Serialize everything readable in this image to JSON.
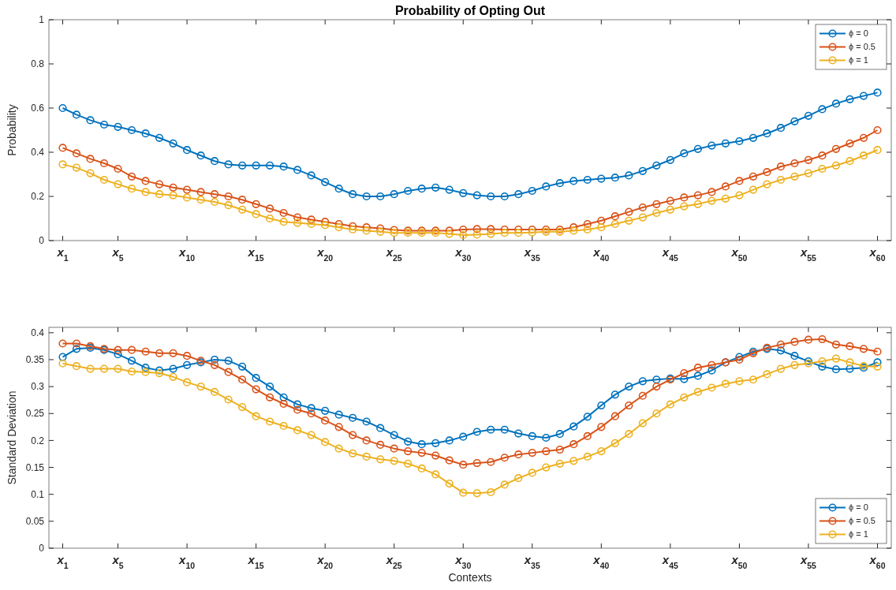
{
  "chart_data": [
    {
      "type": "line",
      "title": "Probability of Opting Out",
      "ylabel": "Probability",
      "x": [
        1,
        2,
        3,
        4,
        5,
        6,
        7,
        8,
        9,
        10,
        11,
        12,
        13,
        14,
        15,
        16,
        17,
        18,
        19,
        20,
        21,
        22,
        23,
        24,
        25,
        26,
        27,
        28,
        29,
        30,
        31,
        32,
        33,
        34,
        35,
        36,
        37,
        38,
        39,
        40,
        41,
        42,
        43,
        44,
        45,
        46,
        47,
        48,
        49,
        50,
        51,
        52,
        53,
        54,
        55,
        56,
        57,
        58,
        59,
        60
      ],
      "xlim": [
        0,
        61
      ],
      "ylim": [
        0,
        1
      ],
      "yticks": [
        0,
        0.2,
        0.4,
        0.6,
        0.8,
        1
      ],
      "xticks": [
        {
          "value": 1,
          "label": "x$_{1}$"
        },
        {
          "value": 5,
          "label": "x$_{5}$"
        },
        {
          "value": 10,
          "label": "x$_{10}$"
        },
        {
          "value": 15,
          "label": "x$_{15}$"
        },
        {
          "value": 20,
          "label": "x$_{20}$"
        },
        {
          "value": 25,
          "label": "x$_{25}$"
        },
        {
          "value": 30,
          "label": "x$_{30}$"
        },
        {
          "value": 35,
          "label": "x$_{35}$"
        },
        {
          "value": 40,
          "label": "x$_{40}$"
        },
        {
          "value": 45,
          "label": "x$_{45}$"
        },
        {
          "value": 50,
          "label": "x$_{50}$"
        },
        {
          "value": 55,
          "label": "x$_{55}$"
        },
        {
          "value": 60,
          "label": "x$_{60}$"
        }
      ],
      "grid": false,
      "legend": "top right",
      "marker": "circle",
      "line_style": "solid",
      "series": [
        {
          "name": "ϕ = 0",
          "color": "#0072bd",
          "values": [
            0.6,
            0.57,
            0.545,
            0.525,
            0.515,
            0.5,
            0.485,
            0.465,
            0.44,
            0.41,
            0.385,
            0.36,
            0.345,
            0.34,
            0.34,
            0.34,
            0.335,
            0.32,
            0.295,
            0.265,
            0.235,
            0.21,
            0.2,
            0.2,
            0.21,
            0.225,
            0.235,
            0.24,
            0.23,
            0.215,
            0.205,
            0.2,
            0.2,
            0.21,
            0.225,
            0.245,
            0.26,
            0.27,
            0.275,
            0.28,
            0.285,
            0.295,
            0.315,
            0.34,
            0.365,
            0.395,
            0.415,
            0.43,
            0.44,
            0.45,
            0.465,
            0.485,
            0.51,
            0.54,
            0.565,
            0.595,
            0.62,
            0.64,
            0.655,
            0.67
          ]
        },
        {
          "name": "ϕ = 0.5",
          "color": "#d95319",
          "values": [
            0.42,
            0.395,
            0.37,
            0.35,
            0.325,
            0.29,
            0.27,
            0.255,
            0.24,
            0.23,
            0.22,
            0.21,
            0.2,
            0.185,
            0.165,
            0.145,
            0.125,
            0.105,
            0.095,
            0.085,
            0.075,
            0.065,
            0.06,
            0.055,
            0.048,
            0.045,
            0.045,
            0.045,
            0.045,
            0.05,
            0.052,
            0.052,
            0.05,
            0.05,
            0.05,
            0.05,
            0.05,
            0.06,
            0.075,
            0.09,
            0.11,
            0.13,
            0.15,
            0.165,
            0.18,
            0.195,
            0.205,
            0.22,
            0.245,
            0.27,
            0.29,
            0.31,
            0.335,
            0.35,
            0.365,
            0.385,
            0.415,
            0.44,
            0.465,
            0.5
          ]
        },
        {
          "name": "ϕ = 1",
          "color": "#edb120",
          "values": [
            0.345,
            0.33,
            0.305,
            0.275,
            0.255,
            0.235,
            0.22,
            0.21,
            0.205,
            0.195,
            0.185,
            0.175,
            0.16,
            0.14,
            0.12,
            0.1,
            0.085,
            0.08,
            0.075,
            0.07,
            0.06,
            0.05,
            0.045,
            0.04,
            0.035,
            0.035,
            0.035,
            0.035,
            0.03,
            0.025,
            0.027,
            0.03,
            0.035,
            0.035,
            0.037,
            0.04,
            0.04,
            0.045,
            0.05,
            0.06,
            0.075,
            0.09,
            0.105,
            0.125,
            0.14,
            0.155,
            0.165,
            0.18,
            0.19,
            0.205,
            0.23,
            0.255,
            0.275,
            0.29,
            0.305,
            0.325,
            0.34,
            0.36,
            0.385,
            0.41
          ]
        }
      ]
    },
    {
      "type": "line",
      "xlabel": "Contexts",
      "ylabel": "Standard Deviation",
      "x": [
        1,
        2,
        3,
        4,
        5,
        6,
        7,
        8,
        9,
        10,
        11,
        12,
        13,
        14,
        15,
        16,
        17,
        18,
        19,
        20,
        21,
        22,
        23,
        24,
        25,
        26,
        27,
        28,
        29,
        30,
        31,
        32,
        33,
        34,
        35,
        36,
        37,
        38,
        39,
        40,
        41,
        42,
        43,
        44,
        45,
        46,
        47,
        48,
        49,
        50,
        51,
        52,
        53,
        54,
        55,
        56,
        57,
        58,
        59,
        60
      ],
      "xlim": [
        0,
        61
      ],
      "ylim": [
        0,
        0.41
      ],
      "yticks": [
        0,
        0.05,
        0.1,
        0.15,
        0.2,
        0.25,
        0.3,
        0.35,
        0.4
      ],
      "xticks": [
        {
          "value": 1,
          "label": "x$_{1}$"
        },
        {
          "value": 5,
          "label": "x$_{5}$"
        },
        {
          "value": 10,
          "label": "x$_{10}$"
        },
        {
          "value": 15,
          "label": "x$_{15}$"
        },
        {
          "value": 20,
          "label": "x$_{20}$"
        },
        {
          "value": 25,
          "label": "x$_{25}$"
        },
        {
          "value": 30,
          "label": "x$_{30}$"
        },
        {
          "value": 35,
          "label": "x$_{35}$"
        },
        {
          "value": 40,
          "label": "x$_{40}$"
        },
        {
          "value": 45,
          "label": "x$_{45}$"
        },
        {
          "value": 50,
          "label": "x$_{50}$"
        },
        {
          "value": 55,
          "label": "x$_{55}$"
        },
        {
          "value": 60,
          "label": "x$_{60}$"
        }
      ],
      "grid": false,
      "legend": "bottom right",
      "marker": "circle",
      "line_style": "solid",
      "series": [
        {
          "name": "ϕ = 0",
          "color": "#0072bd",
          "values": [
            0.355,
            0.37,
            0.372,
            0.368,
            0.36,
            0.348,
            0.335,
            0.33,
            0.333,
            0.34,
            0.345,
            0.35,
            0.348,
            0.337,
            0.316,
            0.3,
            0.28,
            0.267,
            0.26,
            0.255,
            0.248,
            0.242,
            0.235,
            0.223,
            0.21,
            0.198,
            0.193,
            0.195,
            0.2,
            0.207,
            0.216,
            0.22,
            0.22,
            0.213,
            0.208,
            0.205,
            0.212,
            0.226,
            0.244,
            0.265,
            0.285,
            0.3,
            0.31,
            0.313,
            0.315,
            0.314,
            0.32,
            0.33,
            0.345,
            0.355,
            0.365,
            0.37,
            0.367,
            0.357,
            0.347,
            0.337,
            0.332,
            0.333,
            0.335,
            0.345
          ]
        },
        {
          "name": "ϕ = 0.5",
          "color": "#d95319",
          "values": [
            0.38,
            0.38,
            0.375,
            0.37,
            0.368,
            0.368,
            0.365,
            0.362,
            0.362,
            0.357,
            0.348,
            0.34,
            0.327,
            0.313,
            0.295,
            0.28,
            0.268,
            0.257,
            0.25,
            0.237,
            0.225,
            0.21,
            0.2,
            0.192,
            0.185,
            0.18,
            0.177,
            0.172,
            0.163,
            0.155,
            0.158,
            0.16,
            0.168,
            0.174,
            0.177,
            0.18,
            0.183,
            0.193,
            0.208,
            0.225,
            0.245,
            0.265,
            0.283,
            0.3,
            0.313,
            0.325,
            0.335,
            0.34,
            0.345,
            0.35,
            0.362,
            0.372,
            0.378,
            0.383,
            0.387,
            0.388,
            0.378,
            0.375,
            0.37,
            0.365
          ]
        },
        {
          "name": "ϕ = 1",
          "color": "#edb120",
          "values": [
            0.343,
            0.338,
            0.333,
            0.333,
            0.333,
            0.328,
            0.327,
            0.325,
            0.318,
            0.308,
            0.3,
            0.29,
            0.276,
            0.262,
            0.245,
            0.235,
            0.227,
            0.219,
            0.21,
            0.197,
            0.185,
            0.176,
            0.17,
            0.165,
            0.162,
            0.157,
            0.148,
            0.137,
            0.12,
            0.103,
            0.102,
            0.104,
            0.118,
            0.13,
            0.14,
            0.15,
            0.157,
            0.162,
            0.17,
            0.18,
            0.195,
            0.212,
            0.232,
            0.25,
            0.267,
            0.28,
            0.29,
            0.298,
            0.305,
            0.31,
            0.313,
            0.323,
            0.333,
            0.34,
            0.343,
            0.347,
            0.352,
            0.345,
            0.338,
            0.337
          ]
        }
      ]
    }
  ]
}
